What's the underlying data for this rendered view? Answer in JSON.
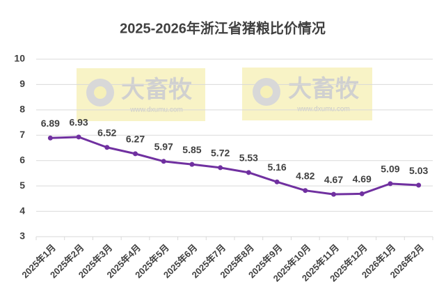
{
  "chart_data": {
    "type": "line",
    "title": "2025-2026年浙江省猪粮比价情况",
    "categories": [
      "2025年1月",
      "2025年2月",
      "2025年3月",
      "2025年4月",
      "2025年5月",
      "2025年6月",
      "2025年7月",
      "2025年8月",
      "2025年9月",
      "2025年10月",
      "2025年11月",
      "2025年12月",
      "2026年1月",
      "2026年2月"
    ],
    "values": [
      6.89,
      6.93,
      6.52,
      6.27,
      5.97,
      5.85,
      5.72,
      5.53,
      5.16,
      4.82,
      4.67,
      4.69,
      5.09,
      5.03
    ],
    "color": "#7030a0",
    "ylim": [
      3,
      10
    ],
    "yticks": [
      3,
      4,
      5,
      6,
      7,
      8,
      9,
      10
    ],
    "grid": true,
    "watermark_text": "大畜牧",
    "watermark_url": "www.dxumu.com"
  }
}
